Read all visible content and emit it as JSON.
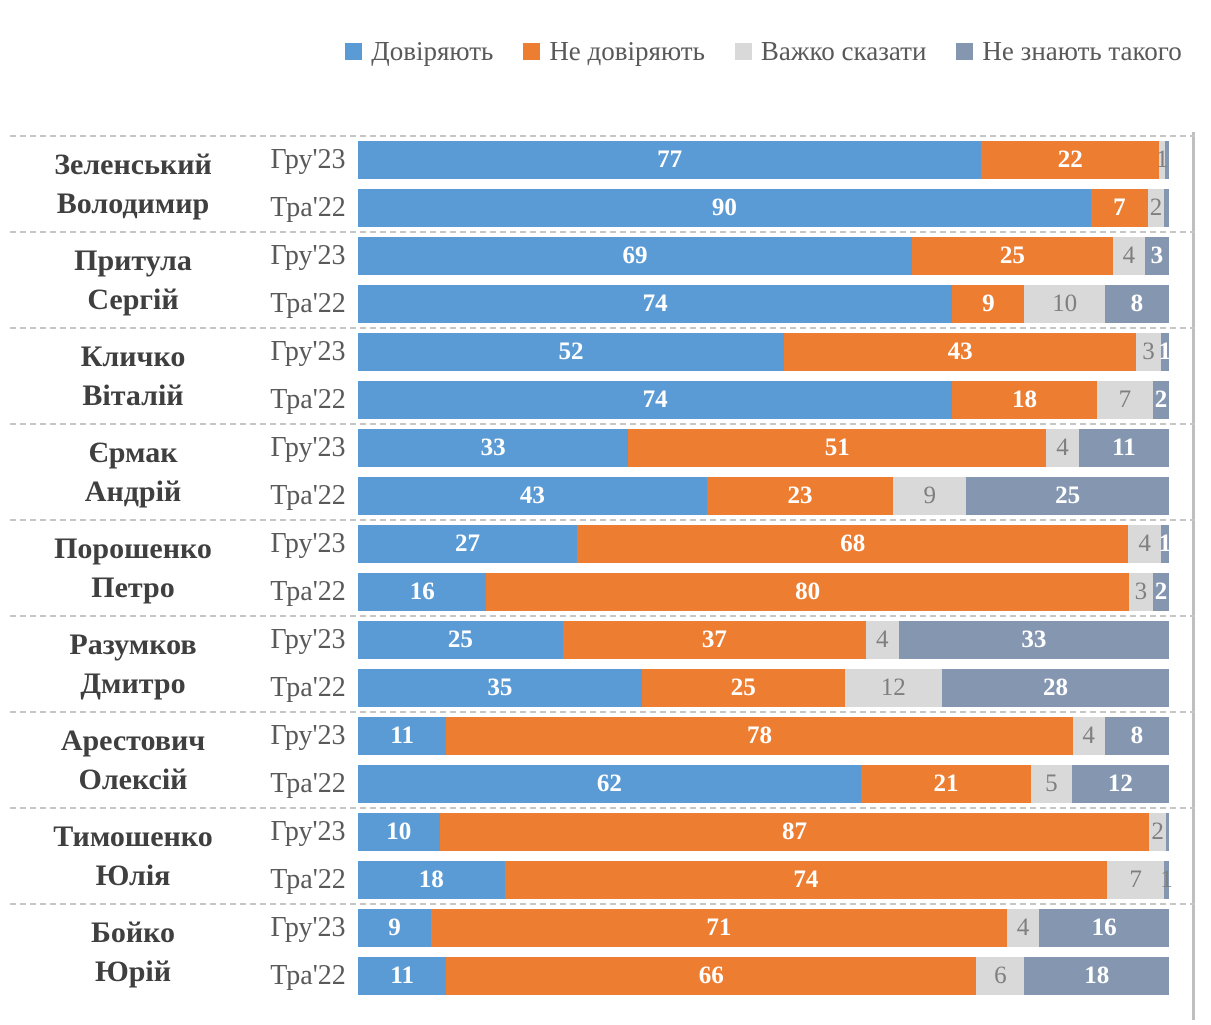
{
  "chart_data": {
    "type": "bar",
    "orientation": "horizontal",
    "stacked": true,
    "unit": "percent",
    "legend_position": "top",
    "grid": false,
    "series": [
      {
        "name": "Довіряють",
        "color": "#5B9BD5"
      },
      {
        "name": "Не довіряють",
        "color": "#ED7D31"
      },
      {
        "name": "Важко сказати",
        "color": "#D9D9D9"
      },
      {
        "name": "Не знають такого",
        "color": "#8496B0"
      }
    ],
    "groups": [
      {
        "name": "Зеленський Володимир",
        "name_lines": [
          "Зеленський",
          "Володимир"
        ],
        "rows": [
          {
            "period": "Гру'23",
            "segments": [
              {
                "v": 77,
                "label": "77"
              },
              {
                "v": 22,
                "label": "22"
              },
              {
                "v": 0.7,
                "label": "1",
                "muted": true
              },
              {
                "v": 0.5,
                "label": ""
              }
            ]
          },
          {
            "period": "Тра'22",
            "segments": [
              {
                "v": 90,
                "label": "90"
              },
              {
                "v": 7,
                "label": "7"
              },
              {
                "v": 2,
                "label": "2",
                "muted": true
              },
              {
                "v": 0.6,
                "label": ""
              }
            ]
          }
        ]
      },
      {
        "name": "Притула Сергій",
        "name_lines": [
          "Притула",
          "Сергій"
        ],
        "rows": [
          {
            "period": "Гру'23",
            "segments": [
              {
                "v": 69,
                "label": "69"
              },
              {
                "v": 25,
                "label": "25"
              },
              {
                "v": 4,
                "label": "4",
                "muted": true
              },
              {
                "v": 3,
                "label": "3"
              }
            ]
          },
          {
            "period": "Тра'22",
            "segments": [
              {
                "v": 74,
                "label": "74"
              },
              {
                "v": 9,
                "label": "9"
              },
              {
                "v": 10,
                "label": "10",
                "muted": true
              },
              {
                "v": 8,
                "label": "8"
              }
            ]
          }
        ]
      },
      {
        "name": "Кличко Віталій",
        "name_lines": [
          "Кличко",
          "Віталій"
        ],
        "rows": [
          {
            "period": "Гру'23",
            "segments": [
              {
                "v": 52,
                "label": "52"
              },
              {
                "v": 43,
                "label": "43"
              },
              {
                "v": 3,
                "label": "3",
                "muted": true
              },
              {
                "v": 1,
                "label": "1"
              }
            ]
          },
          {
            "period": "Тра'22",
            "segments": [
              {
                "v": 74,
                "label": "74"
              },
              {
                "v": 18,
                "label": "18"
              },
              {
                "v": 7,
                "label": "7",
                "muted": true
              },
              {
                "v": 2,
                "label": "2"
              }
            ]
          }
        ]
      },
      {
        "name": "Єрмак Андрій",
        "name_lines": [
          "Єрмак",
          "Андрій"
        ],
        "rows": [
          {
            "period": "Гру'23",
            "segments": [
              {
                "v": 33,
                "label": "33"
              },
              {
                "v": 51,
                "label": "51"
              },
              {
                "v": 4,
                "label": "4",
                "muted": true
              },
              {
                "v": 11,
                "label": "11"
              }
            ]
          },
          {
            "period": "Тра'22",
            "segments": [
              {
                "v": 43,
                "label": "43"
              },
              {
                "v": 23,
                "label": "23"
              },
              {
                "v": 9,
                "label": "9",
                "muted": true
              },
              {
                "v": 25,
                "label": "25"
              }
            ]
          }
        ]
      },
      {
        "name": "Порошенко Петро",
        "name_lines": [
          "Порошенко",
          "Петро"
        ],
        "rows": [
          {
            "period": "Гру'23",
            "segments": [
              {
                "v": 27,
                "label": "27"
              },
              {
                "v": 68,
                "label": "68"
              },
              {
                "v": 4,
                "label": "4",
                "muted": true
              },
              {
                "v": 1,
                "label": "1"
              }
            ]
          },
          {
            "period": "Тра'22",
            "segments": [
              {
                "v": 16,
                "label": "16"
              },
              {
                "v": 80,
                "label": "80"
              },
              {
                "v": 3,
                "label": "3",
                "muted": true
              },
              {
                "v": 2,
                "label": "2"
              }
            ]
          }
        ]
      },
      {
        "name": "Разумков Дмитро",
        "name_lines": [
          "Разумков",
          "Дмитро"
        ],
        "rows": [
          {
            "period": "Гру'23",
            "segments": [
              {
                "v": 25,
                "label": "25"
              },
              {
                "v": 37,
                "label": "37"
              },
              {
                "v": 4,
                "label": "4",
                "muted": true
              },
              {
                "v": 33,
                "label": "33"
              }
            ]
          },
          {
            "period": "Тра'22",
            "segments": [
              {
                "v": 35,
                "label": "35"
              },
              {
                "v": 25,
                "label": "25"
              },
              {
                "v": 12,
                "label": "12",
                "muted": true
              },
              {
                "v": 28,
                "label": "28"
              }
            ]
          }
        ]
      },
      {
        "name": "Арестович Олексій",
        "name_lines": [
          "Арестович",
          "Олексій"
        ],
        "rows": [
          {
            "period": "Гру'23",
            "segments": [
              {
                "v": 11,
                "label": "11"
              },
              {
                "v": 78,
                "label": "78"
              },
              {
                "v": 4,
                "label": "4",
                "muted": true
              },
              {
                "v": 8,
                "label": "8"
              }
            ]
          },
          {
            "period": "Тра'22",
            "segments": [
              {
                "v": 62,
                "label": "62"
              },
              {
                "v": 21,
                "label": "21"
              },
              {
                "v": 5,
                "label": "5",
                "muted": true
              },
              {
                "v": 12,
                "label": "12"
              }
            ]
          }
        ]
      },
      {
        "name": "Тимошенко Юлія",
        "name_lines": [
          "Тимошенко",
          "Юлія"
        ],
        "rows": [
          {
            "period": "Гру'23",
            "segments": [
              {
                "v": 10,
                "label": "10"
              },
              {
                "v": 87,
                "label": "87"
              },
              {
                "v": 2,
                "label": "2",
                "muted": true
              },
              {
                "v": 0.4,
                "label": ""
              }
            ]
          },
          {
            "period": "Тра'22",
            "segments": [
              {
                "v": 18,
                "label": "18"
              },
              {
                "v": 74,
                "label": "74"
              },
              {
                "v": 7,
                "label": "7",
                "muted": true
              },
              {
                "v": 0.6,
                "label": "1",
                "muted": true
              }
            ]
          }
        ]
      },
      {
        "name": "Бойко Юрій",
        "name_lines": [
          "Бойко",
          "Юрій"
        ],
        "rows": [
          {
            "period": "Гру'23",
            "segments": [
              {
                "v": 9,
                "label": "9"
              },
              {
                "v": 71,
                "label": "71"
              },
              {
                "v": 4,
                "label": "4",
                "muted": true
              },
              {
                "v": 16,
                "label": "16"
              }
            ]
          },
          {
            "period": "Тра'22",
            "segments": [
              {
                "v": 11,
                "label": "11"
              },
              {
                "v": 66,
                "label": "66"
              },
              {
                "v": 6,
                "label": "6",
                "muted": true
              },
              {
                "v": 18,
                "label": "18"
              }
            ]
          }
        ]
      }
    ]
  },
  "styles": {
    "axis_line_color": "#BFBFBF",
    "separator_color": "#C6C6C6",
    "name_color": "#3F3F3F",
    "period_color": "#595959",
    "legend_text_color": "#595959",
    "value_label_color": "#FFFFFF",
    "muted_label_color": "#7F7F7F",
    "background": "#FFFFFF"
  }
}
